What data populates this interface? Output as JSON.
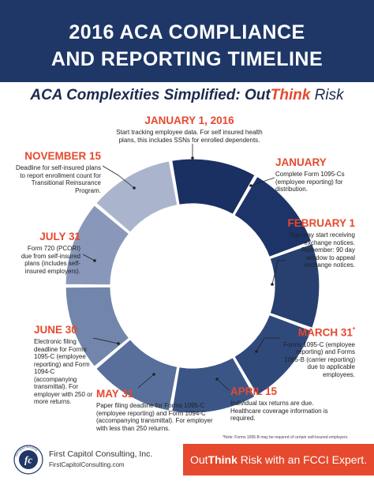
{
  "header": {
    "line1": "2016 ACA COMPLIANCE",
    "line2": "AND REPORTING TIMELINE"
  },
  "subtitle": {
    "pre": "ACA Complexities Simplified: Out",
    "emph": "Think",
    "post": " Risk"
  },
  "events": [
    {
      "date": "JANUARY 1, 2016",
      "text": "Start tracking employee data. For self insured health plans, this includes SSNs for enrolled dependents."
    },
    {
      "date": "JANUARY",
      "text": "Complete Form 1095-Cs (employee reporting) for distribution."
    },
    {
      "date": "FEBRUARY 1",
      "text": "You may start receiving exchange notices. Remember: 90 day window to appeal exchange notices."
    },
    {
      "date": "MARCH 31",
      "date_sup": "*",
      "text": "Forms 1095-C (employee reporting) and Forms 1095-B (carrier reporting) due to applicable employees."
    },
    {
      "date": "APRIL 15",
      "text": "Individual tax returns are due. Healthcare coverage information is required."
    },
    {
      "date": "MAY 31",
      "text": "Paper filing deadline for Forms 1095-C (employee reporting) and Form 1094-C (accompanying transmittal). For employer with less than 250 returns."
    },
    {
      "date": "JUNE 30",
      "text": "Electronic filing deadline for Forms 1095-C (employee reporting) and Form 1094-C (accompanying transmittal). For employer with 250 or more returns."
    },
    {
      "date": "JULY 31",
      "text": "Form 720 (PCORI) due from self-insured plans (includes self-insured employers)."
    },
    {
      "date": "NOVEMBER 15",
      "text": "Deadline for self-insured plans to report enrollment count for Transitional Reinsurance Program."
    }
  ],
  "wheel_colors": [
    "#1a2f62",
    "#1c3468",
    "#27406f",
    "#30497b",
    "#3b5686",
    "#576f9a",
    "#7285ab",
    "#8998ba",
    "#aab5cd"
  ],
  "note": "*Note: Forms 1095-B may be required of certain self-insured employers.",
  "footer": {
    "company": "First Capitol Consulting, Inc.",
    "website": "FirstCapitolConsulting.com",
    "logo_initials": "fc",
    "logo_ring": "first capitol consulting",
    "cta_pre": "Out",
    "cta_emph": "Think",
    "cta_post": " Risk with an FCCI Expert."
  }
}
